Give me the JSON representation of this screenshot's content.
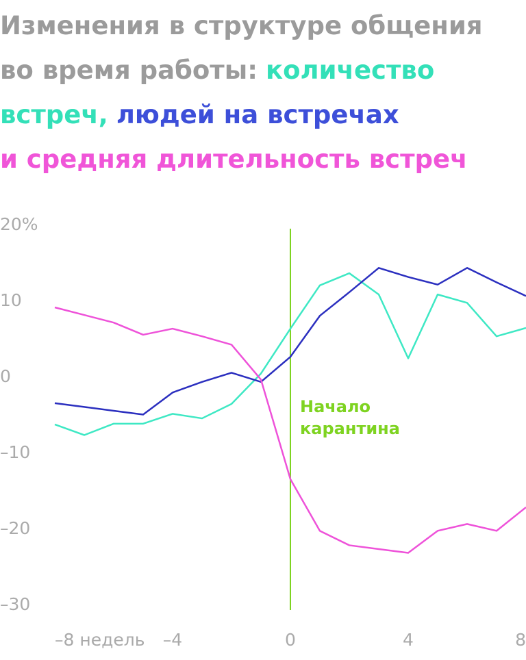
{
  "chart_data": {
    "type": "line",
    "title_lines": [
      [
        {
          "text": "Изменения в структуре общения",
          "color": "#9b9b9b"
        }
      ],
      [
        {
          "text": "во время работы:",
          "color": "#9b9b9b"
        },
        {
          "text": "количество",
          "color": "#33e0b8"
        }
      ],
      [
        {
          "text": "встреч,",
          "color": "#33e0b8"
        },
        {
          "text": "людей на встречах",
          "color": "#3d4fd9"
        }
      ],
      [
        {
          "text": "и средняя длительность встреч",
          "color": "#f055d8"
        }
      ]
    ],
    "x": [
      -8,
      -7,
      -6,
      -5,
      -4,
      -3,
      -2,
      -1,
      0,
      1,
      2,
      3,
      4,
      5,
      6,
      7,
      8
    ],
    "series": [
      {
        "name": "количество встреч",
        "color": "#3ee8c4",
        "values": [
          -5.4,
          -6.8,
          -5.3,
          -5.3,
          -4.0,
          -4.6,
          -2.7,
          1.3,
          7.2,
          12.9,
          14.5,
          11.7,
          3.3,
          11.7,
          10.6,
          6.2,
          7.3
        ]
      },
      {
        "name": "людей на встречах",
        "color": "#2b2fbf",
        "values": [
          -2.6,
          -3.1,
          -3.6,
          -4.1,
          -1.2,
          0.2,
          1.4,
          0.2,
          3.5,
          8.9,
          12,
          15.2,
          14,
          13,
          15.2,
          13.3,
          11.5
        ]
      },
      {
        "name": "средняя длительность встреч",
        "color": "#ee52d9",
        "values": [
          10,
          9,
          8,
          6.4,
          7.2,
          6.2,
          5.1,
          0.5,
          -12.6,
          -19.4,
          -21.3,
          -21.8,
          -22.3,
          -19.4,
          -18.5,
          -19.4,
          -16.3
        ]
      }
    ],
    "xlim": [
      -8,
      8
    ],
    "xticks": [
      {
        "value": -8,
        "label": "–8 недель"
      },
      {
        "value": -4,
        "label": "–4"
      },
      0,
      4,
      8
    ],
    "ylim": [
      -30,
      20
    ],
    "yticks": [
      {
        "value": 20,
        "label": "20%"
      },
      10,
      0,
      {
        "value": -10,
        "label": "–10"
      },
      {
        "value": -20,
        "label": "–20"
      },
      {
        "value": -30,
        "label": "–30"
      }
    ],
    "annotation": {
      "x": 0,
      "color": "#7ed321",
      "lines": [
        "Начало",
        "карантина"
      ]
    }
  }
}
